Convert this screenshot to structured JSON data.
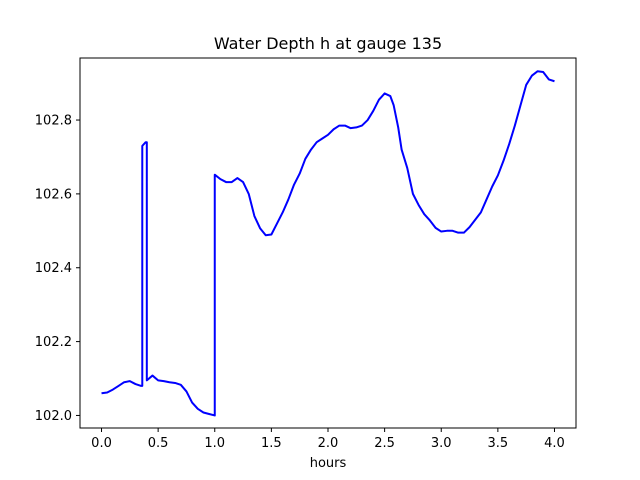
{
  "chart_data": {
    "type": "line",
    "title": "Water Depth h at gauge 135",
    "xlabel": "hours",
    "ylabel": "",
    "xlim": [
      -0.19,
      4.19
    ],
    "ylim": [
      101.966,
      102.968
    ],
    "x_ticks": [
      0.0,
      0.5,
      1.0,
      1.5,
      2.0,
      2.5,
      3.0,
      3.5,
      4.0
    ],
    "x_tick_labels": [
      "0.0",
      "0.5",
      "1.0",
      "1.5",
      "2.0",
      "2.5",
      "3.0",
      "3.5",
      "4.0"
    ],
    "y_ticks": [
      102.0,
      102.2,
      102.4,
      102.6,
      102.8
    ],
    "y_tick_labels": [
      "102.0",
      "102.2",
      "102.4",
      "102.6",
      "102.8"
    ],
    "grid": false,
    "legend": "none",
    "series": [
      {
        "color": "#0000ff",
        "x": [
          0.0,
          0.05,
          0.1,
          0.15,
          0.2,
          0.25,
          0.3,
          0.35,
          0.36,
          0.36,
          0.39,
          0.4,
          0.4,
          0.45,
          0.5,
          0.55,
          0.6,
          0.65,
          0.7,
          0.75,
          0.8,
          0.85,
          0.9,
          0.95,
          1.0,
          1.0,
          1.05,
          1.1,
          1.15,
          1.2,
          1.25,
          1.3,
          1.35,
          1.4,
          1.45,
          1.5,
          1.55,
          1.6,
          1.65,
          1.7,
          1.75,
          1.8,
          1.85,
          1.9,
          1.95,
          2.0,
          2.05,
          2.1,
          2.15,
          2.2,
          2.25,
          2.3,
          2.35,
          2.4,
          2.45,
          2.5,
          2.55,
          2.58,
          2.62,
          2.65,
          2.7,
          2.75,
          2.8,
          2.85,
          2.9,
          2.95,
          3.0,
          3.05,
          3.1,
          3.15,
          3.2,
          3.25,
          3.3,
          3.35,
          3.4,
          3.45,
          3.5,
          3.55,
          3.6,
          3.65,
          3.7,
          3.75,
          3.8,
          3.85,
          3.9,
          3.95,
          4.0
        ],
        "y": [
          102.06,
          102.062,
          102.07,
          102.08,
          102.09,
          102.093,
          102.085,
          102.08,
          102.08,
          102.73,
          102.74,
          102.74,
          102.095,
          102.108,
          102.095,
          102.093,
          102.09,
          102.088,
          102.083,
          102.065,
          102.035,
          102.018,
          102.008,
          102.004,
          102.0,
          102.652,
          102.64,
          102.632,
          102.632,
          102.643,
          102.632,
          102.6,
          102.54,
          102.507,
          102.488,
          102.49,
          102.52,
          102.55,
          102.585,
          102.625,
          102.655,
          102.695,
          102.72,
          102.74,
          102.75,
          102.76,
          102.775,
          102.785,
          102.785,
          102.778,
          102.78,
          102.785,
          102.8,
          102.825,
          102.855,
          102.872,
          102.865,
          102.84,
          102.78,
          102.72,
          102.67,
          102.6,
          102.57,
          102.545,
          102.528,
          102.508,
          102.498,
          102.5,
          102.5,
          102.495,
          102.495,
          102.51,
          102.53,
          102.55,
          102.585,
          102.62,
          102.65,
          102.69,
          102.735,
          102.785,
          102.84,
          102.895,
          102.92,
          102.932,
          102.93,
          102.91,
          102.905
        ]
      }
    ]
  }
}
